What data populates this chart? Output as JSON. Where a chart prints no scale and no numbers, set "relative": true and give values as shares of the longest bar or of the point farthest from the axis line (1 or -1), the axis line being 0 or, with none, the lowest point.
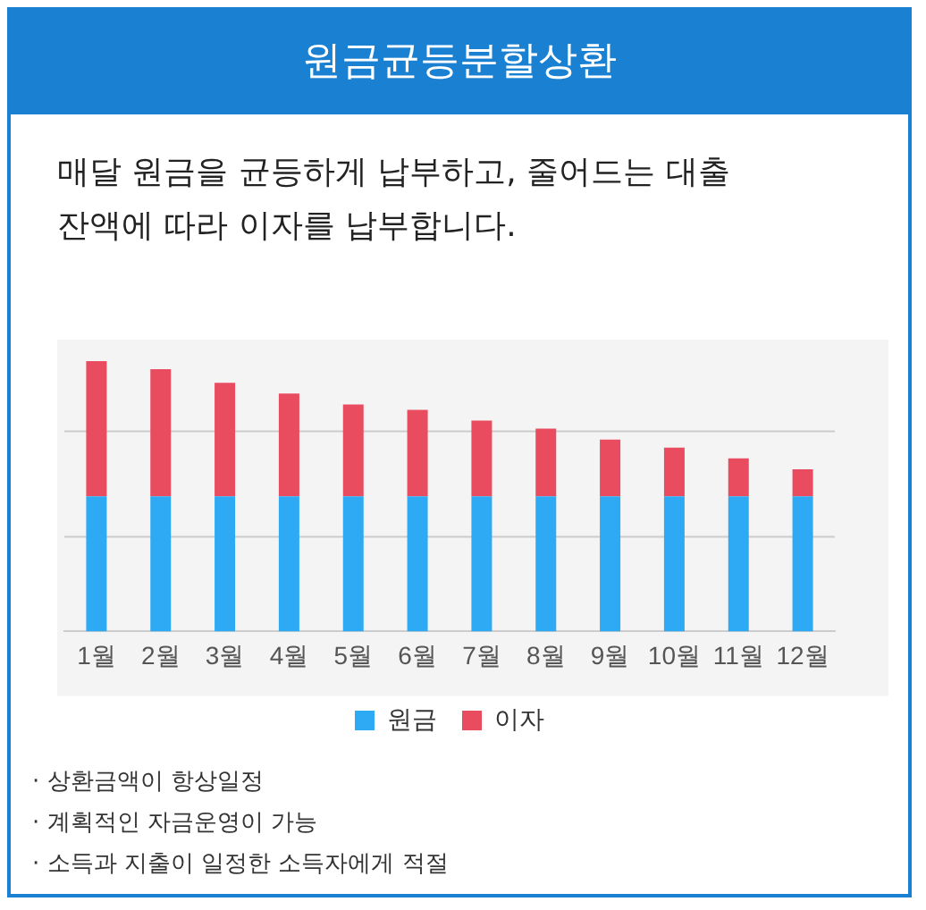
{
  "chart_data": {
    "type": "bar",
    "title": "원금균등분할상환",
    "subtitle": "매달 원금을 균등하게 납부하고, 줄어드는 대출 잔액에 따라 이자를 납부합니다.",
    "categories": [
      "1월",
      "2월",
      "3월",
      "4월",
      "5월",
      "6월",
      "7월",
      "8월",
      "9월",
      "10월",
      "11월",
      "12월"
    ],
    "series": [
      {
        "name": "원금",
        "color": "#2eaaf5",
        "values": [
          0.5,
          0.5,
          0.5,
          0.5,
          0.5,
          0.5,
          0.5,
          0.5,
          0.5,
          0.5,
          0.5,
          0.5
        ]
      },
      {
        "name": "이자",
        "color": "#e94b5f",
        "values": [
          0.5,
          0.47,
          0.42,
          0.38,
          0.34,
          0.32,
          0.28,
          0.25,
          0.21,
          0.18,
          0.14,
          0.1
        ]
      }
    ],
    "stacked": true,
    "relative": true,
    "legend": "bottom",
    "ref_lines": [
      {
        "axis": "y",
        "value": 0.35,
        "color": "#cccccc"
      },
      {
        "axis": "y",
        "value": 0.74,
        "color": "#cccccc"
      }
    ],
    "annotations": [
      "· 상환금액이 항상일정",
      "· 계획적인 자금운영이 가능",
      "· 소득과 지출이 일정한 소득자에게 적절"
    ]
  }
}
